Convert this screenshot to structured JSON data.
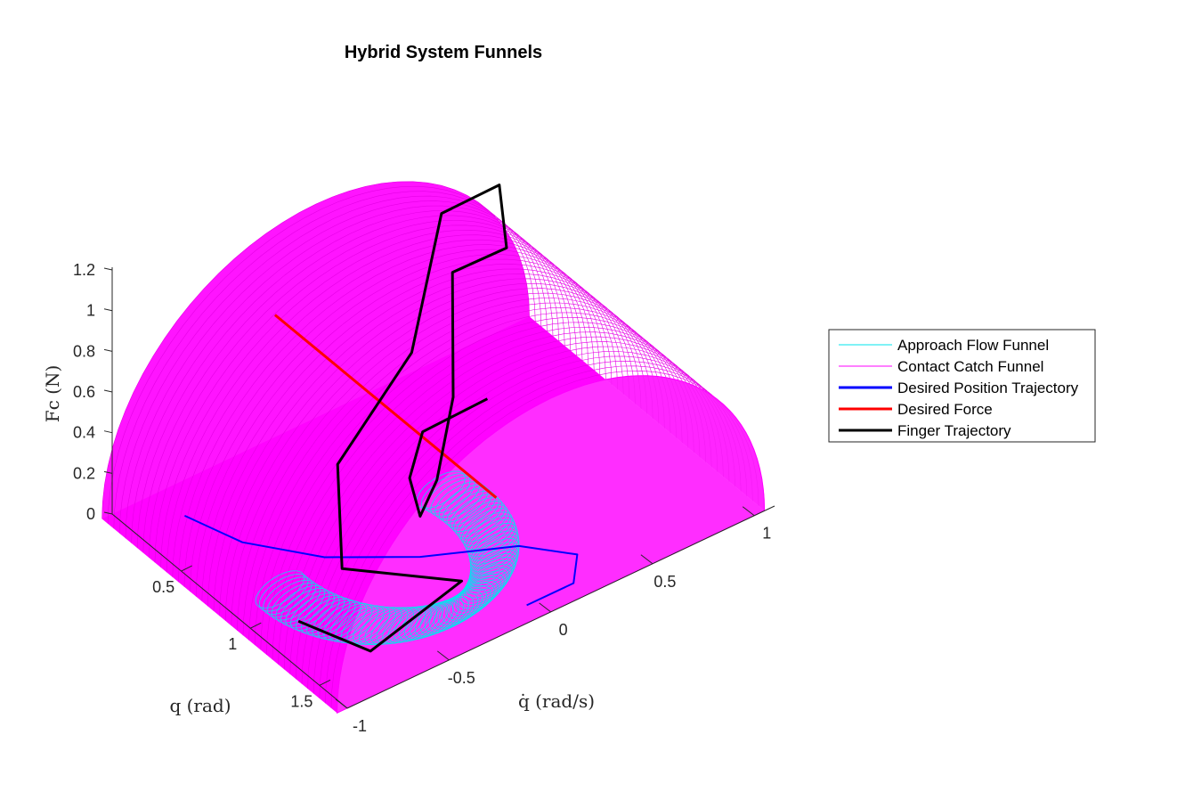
{
  "chart_data": {
    "type": "surface3d",
    "title": "Hybrid System Funnels",
    "xlabel": "q (rad)",
    "ylabel": "q̇ (rad/s)",
    "zlabel": "Fc (N)",
    "xlim": [
      0,
      1.7
    ],
    "ylim": [
      -1,
      1.1
    ],
    "zlim": [
      0,
      1.2
    ],
    "xticks": [
      0.5,
      1,
      1.5
    ],
    "xticklabels": [
      "0.5",
      "1",
      "1.5"
    ],
    "yticks": [
      -1,
      -0.5,
      0,
      0.5,
      1
    ],
    "yticklabels": [
      "-1",
      "-0.5",
      "0",
      "0.5",
      "1"
    ],
    "zticks": [
      0,
      0.2,
      0.4,
      0.6,
      0.8,
      1,
      1.2
    ],
    "zticklabels": [
      "0",
      "0.2",
      "0.4",
      "0.6",
      "0.8",
      "1",
      "1.2"
    ],
    "grid": false,
    "legend_placement": "outside-right",
    "series": [
      {
        "name": "Approach Flow Funnel",
        "kind": "tube",
        "color": "#00e5ee",
        "center_q_range": [
          0.7,
          1.6
        ],
        "center_qdot_range": [
          -0.75,
          0.05
        ],
        "tube_radius": 0.12
      },
      {
        "name": "Contact Catch Funnel",
        "kind": "half-cylinder",
        "color": "#ff00ff",
        "axis_range_q": [
          0,
          1.7
        ],
        "radius": 1.05,
        "center_qdot": 0
      },
      {
        "name": "Desired Position Trajectory",
        "kind": "line",
        "color": "#0000ff",
        "points": [
          {
            "q": 0.2,
            "qdot": -0.78,
            "fc": 0
          },
          {
            "q": 0.5,
            "qdot": -0.7,
            "fc": 0
          },
          {
            "q": 0.8,
            "qdot": -0.5,
            "fc": 0
          },
          {
            "q": 1.05,
            "qdot": -0.2,
            "fc": 0
          },
          {
            "q": 1.25,
            "qdot": 0.15,
            "fc": 0
          },
          {
            "q": 1.45,
            "qdot": 0.3,
            "fc": 0
          },
          {
            "q": 1.6,
            "qdot": 0.18,
            "fc": 0
          },
          {
            "q": 1.6,
            "qdot": -0.05,
            "fc": 0
          }
        ]
      },
      {
        "name": "Desired Force",
        "kind": "line",
        "color": "#ff0000",
        "points": [
          {
            "q": 0.0,
            "qdot": -0.2,
            "fc": 0.6
          },
          {
            "q": 1.6,
            "qdot": -0.2,
            "fc": 0.6
          }
        ]
      },
      {
        "name": "Finger Trajectory",
        "kind": "line",
        "color": "#000000",
        "points": [
          {
            "q": 1.2,
            "qdot": -0.9,
            "fc": 0.1
          },
          {
            "q": 1.5,
            "qdot": -0.75,
            "fc": 0.05
          },
          {
            "q": 1.35,
            "qdot": -0.2,
            "fc": 0.05
          },
          {
            "q": 1.0,
            "qdot": -0.55,
            "fc": 0.08
          },
          {
            "q": 0.6,
            "qdot": -0.3,
            "fc": 0.25
          },
          {
            "q": 0.4,
            "qdot": 0.2,
            "fc": 0.45
          },
          {
            "q": 0.1,
            "qdot": 0.55,
            "fc": 0.8
          },
          {
            "q": 0.15,
            "qdot": 0.8,
            "fc": 0.85
          },
          {
            "q": 0.35,
            "qdot": 0.7,
            "fc": 0.7
          },
          {
            "q": 0.4,
            "qdot": 0.4,
            "fc": 0.75
          },
          {
            "q": 0.7,
            "qdot": 0.2,
            "fc": 0.4
          },
          {
            "q": 0.95,
            "qdot": -0.05,
            "fc": 0.25
          },
          {
            "q": 1.05,
            "qdot": -0.2,
            "fc": 0.2
          },
          {
            "q": 0.9,
            "qdot": -0.15,
            "fc": 0.28
          },
          {
            "q": 0.7,
            "qdot": 0.05,
            "fc": 0.3
          },
          {
            "q": 0.8,
            "qdot": 0.3,
            "fc": 0.4
          }
        ]
      }
    ]
  }
}
